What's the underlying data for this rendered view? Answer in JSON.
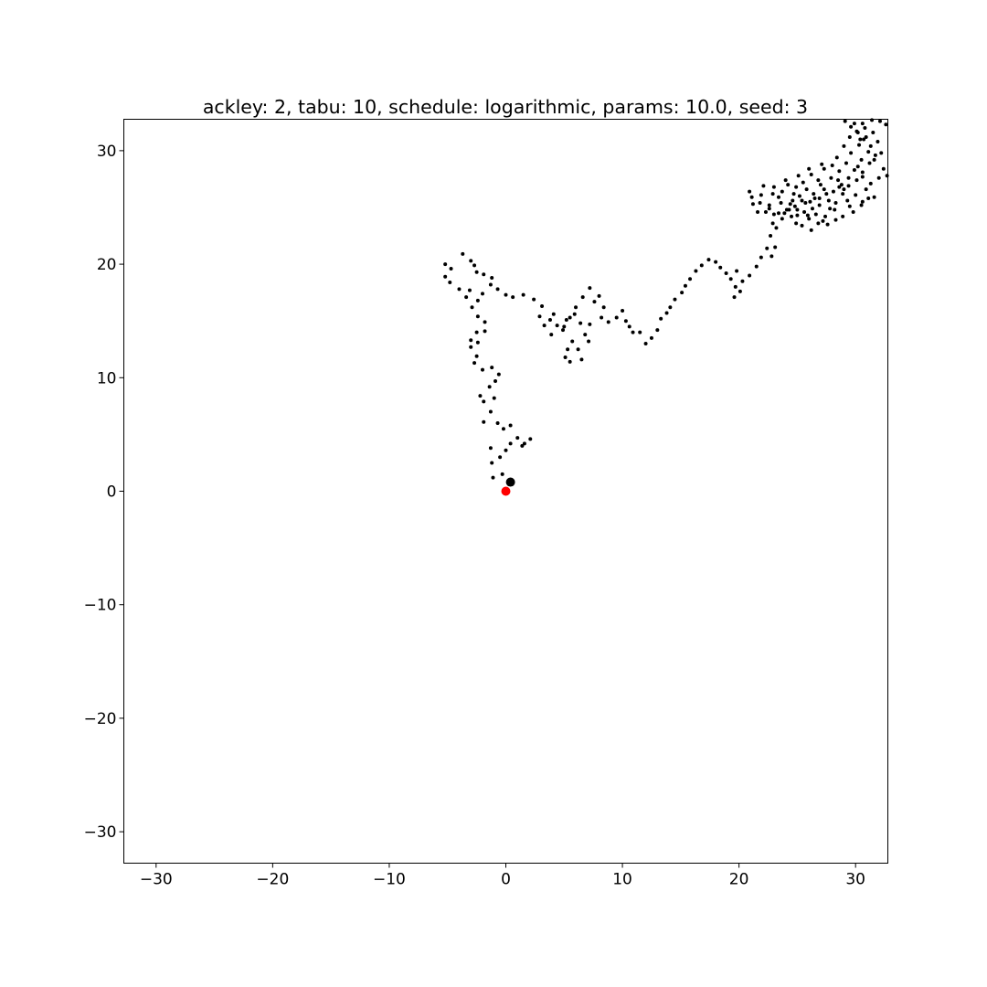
{
  "chart_data": {
    "type": "scatter",
    "title": "ackley: 2, tabu: 10, schedule: logarithmic, params: 10.0, seed: 3",
    "xlabel": "",
    "ylabel": "",
    "xlim": [
      -32.768,
      32.768
    ],
    "ylim": [
      -32.768,
      32.768
    ],
    "grid": false,
    "x_ticks": [
      -30,
      -20,
      -10,
      0,
      10,
      20,
      30
    ],
    "y_ticks": [
      -30,
      -20,
      -10,
      0,
      10,
      20,
      30
    ],
    "x_tick_labels": [
      "−30",
      "−20",
      "−10",
      "0",
      "10",
      "20",
      "30"
    ],
    "y_tick_labels": [
      "−30",
      "−20",
      "−10",
      "0",
      "10",
      "20",
      "30"
    ],
    "series": [
      {
        "role": "search-path",
        "color": "#000000",
        "marker": "small-dot",
        "points": [
          [
            -0.3,
            1.5
          ],
          [
            -1.1,
            1.2
          ],
          [
            -1.2,
            2.5
          ],
          [
            -1.3,
            3.8
          ],
          [
            -0.5,
            3.0
          ],
          [
            0.0,
            3.6
          ],
          [
            0.4,
            4.2
          ],
          [
            1.0,
            4.7
          ],
          [
            1.4,
            4.0
          ],
          [
            2.1,
            4.6
          ],
          [
            1.6,
            4.2
          ],
          [
            0.4,
            5.8
          ],
          [
            -0.2,
            5.5
          ],
          [
            -0.7,
            6.0
          ],
          [
            -1.9,
            6.1
          ],
          [
            -1.3,
            7.0
          ],
          [
            -1.9,
            7.9
          ],
          [
            -2.2,
            8.4
          ],
          [
            -1.0,
            8.2
          ],
          [
            -1.4,
            9.2
          ],
          [
            -0.9,
            9.7
          ],
          [
            -0.6,
            10.3
          ],
          [
            -1.2,
            10.9
          ],
          [
            -2.0,
            10.7
          ],
          [
            -2.7,
            11.3
          ],
          [
            -2.5,
            11.9
          ],
          [
            -3.0,
            12.7
          ],
          [
            -2.4,
            13.1
          ],
          [
            -3.0,
            13.3
          ],
          [
            -2.5,
            14.0
          ],
          [
            -1.8,
            14.1
          ],
          [
            -1.8,
            14.9
          ],
          [
            -2.4,
            15.4
          ],
          [
            -2.9,
            16.2
          ],
          [
            -2.4,
            16.8
          ],
          [
            -3.4,
            17.1
          ],
          [
            -2.0,
            17.4
          ],
          [
            -3.1,
            17.7
          ],
          [
            -4.0,
            17.8
          ],
          [
            -4.8,
            18.4
          ],
          [
            -5.2,
            18.9
          ],
          [
            -4.7,
            19.6
          ],
          [
            -5.2,
            20.0
          ],
          [
            -3.7,
            20.9
          ],
          [
            -3.0,
            20.3
          ],
          [
            -2.7,
            19.9
          ],
          [
            -2.5,
            19.3
          ],
          [
            -1.9,
            19.1
          ],
          [
            -1.2,
            18.8
          ],
          [
            -1.3,
            18.2
          ],
          [
            -0.7,
            17.8
          ],
          [
            0.0,
            17.3
          ],
          [
            0.6,
            17.1
          ],
          [
            1.5,
            17.3
          ],
          [
            2.4,
            16.9
          ],
          [
            3.1,
            16.3
          ],
          [
            2.9,
            15.4
          ],
          [
            3.3,
            14.6
          ],
          [
            3.8,
            15.1
          ],
          [
            4.1,
            15.6
          ],
          [
            4.4,
            14.6
          ],
          [
            3.9,
            13.8
          ],
          [
            4.9,
            14.2
          ],
          [
            5.2,
            15.1
          ],
          [
            5.9,
            15.6
          ],
          [
            6.4,
            14.8
          ],
          [
            7.2,
            14.7
          ],
          [
            6.8,
            13.8
          ],
          [
            7.1,
            13.2
          ],
          [
            6.2,
            12.5
          ],
          [
            6.5,
            11.6
          ],
          [
            5.5,
            11.4
          ],
          [
            5.1,
            11.8
          ],
          [
            5.3,
            12.5
          ],
          [
            5.7,
            13.2
          ],
          [
            5.0,
            14.5
          ],
          [
            5.5,
            15.3
          ],
          [
            6.0,
            16.2
          ],
          [
            6.6,
            17.1
          ],
          [
            7.2,
            17.9
          ],
          [
            8.0,
            17.2
          ],
          [
            7.6,
            16.7
          ],
          [
            8.4,
            16.2
          ],
          [
            8.2,
            15.3
          ],
          [
            8.8,
            14.9
          ],
          [
            9.5,
            15.3
          ],
          [
            10.0,
            15.9
          ],
          [
            10.3,
            15.0
          ],
          [
            10.6,
            14.5
          ],
          [
            10.9,
            14.0
          ],
          [
            11.5,
            14.0
          ],
          [
            12.0,
            13.0
          ],
          [
            12.5,
            13.5
          ],
          [
            13.0,
            14.2
          ],
          [
            13.3,
            15.2
          ],
          [
            13.8,
            15.7
          ],
          [
            14.1,
            16.2
          ],
          [
            14.5,
            16.9
          ],
          [
            15.1,
            17.5
          ],
          [
            15.4,
            18.1
          ],
          [
            15.8,
            18.7
          ],
          [
            16.3,
            19.4
          ],
          [
            16.8,
            19.9
          ],
          [
            17.4,
            20.4
          ],
          [
            18.0,
            20.2
          ],
          [
            18.4,
            19.7
          ],
          [
            18.9,
            19.2
          ],
          [
            19.3,
            18.7
          ],
          [
            19.7,
            18.0
          ],
          [
            19.6,
            17.1
          ],
          [
            20.1,
            17.6
          ],
          [
            20.3,
            18.5
          ],
          [
            19.8,
            19.4
          ],
          [
            20.9,
            19.0
          ],
          [
            21.5,
            19.8
          ],
          [
            21.9,
            20.6
          ],
          [
            22.4,
            21.4
          ],
          [
            22.8,
            20.7
          ],
          [
            23.1,
            21.5
          ],
          [
            22.7,
            22.5
          ],
          [
            22.9,
            23.6
          ],
          [
            23.4,
            24.5
          ],
          [
            22.6,
            24.9
          ],
          [
            21.8,
            25.4
          ],
          [
            21.1,
            25.9
          ],
          [
            20.9,
            26.4
          ],
          [
            22.1,
            26.9
          ],
          [
            22.9,
            26.2
          ],
          [
            23.6,
            25.4
          ],
          [
            24.3,
            24.8
          ],
          [
            25.0,
            24.3
          ],
          [
            25.4,
            23.4
          ],
          [
            26.2,
            23.0
          ],
          [
            26.8,
            23.6
          ],
          [
            27.4,
            24.2
          ],
          [
            27.8,
            24.9
          ],
          [
            28.3,
            25.4
          ],
          [
            28.9,
            26.2
          ],
          [
            29.4,
            26.9
          ],
          [
            30.1,
            27.4
          ],
          [
            30.6,
            28.1
          ],
          [
            31.2,
            28.9
          ],
          [
            31.7,
            29.6
          ],
          [
            31.3,
            30.4
          ],
          [
            30.7,
            31.0
          ],
          [
            30.2,
            31.6
          ],
          [
            29.6,
            32.1
          ],
          [
            29.1,
            32.6
          ],
          [
            29.8,
            32.8
          ],
          [
            30.6,
            32.4
          ],
          [
            31.4,
            32.7
          ],
          [
            32.1,
            32.6
          ],
          [
            32.6,
            32.3
          ]
        ]
      },
      {
        "role": "search-cluster",
        "color": "#000000",
        "marker": "small-dot",
        "points": [
          [
            22.3,
            24.6
          ],
          [
            23.0,
            24.4
          ],
          [
            23.7,
            24.0
          ],
          [
            24.1,
            24.8
          ],
          [
            24.6,
            25.6
          ],
          [
            25.2,
            26.0
          ],
          [
            25.7,
            25.4
          ],
          [
            26.3,
            24.9
          ],
          [
            26.9,
            25.8
          ],
          [
            27.3,
            26.6
          ],
          [
            26.8,
            27.4
          ],
          [
            26.2,
            27.9
          ],
          [
            25.5,
            27.2
          ],
          [
            24.9,
            26.8
          ],
          [
            24.2,
            27.0
          ],
          [
            23.7,
            26.4
          ],
          [
            24.4,
            25.3
          ],
          [
            25.0,
            24.8
          ],
          [
            25.9,
            24.3
          ],
          [
            26.5,
            25.8
          ],
          [
            27.7,
            25.6
          ],
          [
            28.2,
            24.8
          ],
          [
            28.6,
            26.8
          ],
          [
            27.9,
            27.6
          ],
          [
            27.3,
            28.4
          ],
          [
            28.6,
            28.2
          ],
          [
            29.2,
            28.9
          ],
          [
            29.6,
            29.8
          ],
          [
            30.3,
            30.5
          ],
          [
            30.9,
            31.2
          ],
          [
            31.5,
            31.6
          ],
          [
            31.9,
            30.8
          ],
          [
            31.1,
            29.9
          ],
          [
            30.5,
            29.2
          ],
          [
            29.9,
            28.3
          ],
          [
            30.6,
            27.7
          ],
          [
            31.3,
            27.1
          ],
          [
            32.0,
            27.6
          ],
          [
            32.4,
            28.4
          ],
          [
            32.7,
            27.8
          ],
          [
            29.4,
            27.6
          ],
          [
            28.8,
            27.0
          ],
          [
            29.3,
            25.6
          ],
          [
            30.0,
            26.1
          ],
          [
            30.5,
            25.2
          ],
          [
            31.1,
            25.8
          ],
          [
            29.8,
            24.6
          ],
          [
            28.9,
            24.2
          ],
          [
            27.6,
            23.5
          ],
          [
            26.6,
            24.4
          ],
          [
            25.4,
            25.6
          ],
          [
            24.7,
            26.2
          ],
          [
            25.8,
            26.6
          ],
          [
            26.4,
            26.2
          ],
          [
            27.0,
            27.0
          ],
          [
            23.4,
            25.9
          ],
          [
            22.6,
            25.2
          ],
          [
            21.6,
            24.6
          ],
          [
            21.2,
            25.3
          ],
          [
            21.9,
            26.1
          ],
          [
            23.0,
            26.8
          ],
          [
            24.0,
            27.4
          ],
          [
            25.1,
            27.8
          ],
          [
            26.0,
            28.4
          ],
          [
            27.1,
            28.8
          ],
          [
            28.0,
            28.7
          ],
          [
            28.4,
            29.4
          ],
          [
            29.0,
            30.4
          ],
          [
            29.5,
            31.2
          ],
          [
            30.1,
            31.7
          ],
          [
            30.8,
            32.0
          ],
          [
            29.9,
            32.4
          ],
          [
            30.4,
            31.0
          ],
          [
            31.6,
            29.2
          ],
          [
            32.2,
            29.8
          ],
          [
            30.2,
            28.6
          ],
          [
            27.5,
            26.2
          ],
          [
            26.1,
            25.5
          ],
          [
            24.8,
            25.1
          ],
          [
            23.9,
            24.5
          ],
          [
            25.6,
            24.6
          ],
          [
            26.9,
            25.2
          ],
          [
            28.1,
            26.4
          ],
          [
            28.5,
            27.4
          ],
          [
            29.0,
            26.6
          ],
          [
            30.9,
            26.6
          ],
          [
            31.6,
            25.9
          ],
          [
            30.6,
            25.5
          ],
          [
            29.5,
            25.1
          ],
          [
            28.3,
            23.9
          ],
          [
            27.2,
            23.8
          ],
          [
            26.0,
            24.0
          ],
          [
            24.9,
            23.6
          ],
          [
            24.5,
            24.2
          ],
          [
            23.2,
            23.2
          ]
        ]
      },
      {
        "role": "final-point",
        "color": "#000000",
        "marker": "large-dot",
        "points": [
          [
            0.4,
            0.8
          ]
        ]
      },
      {
        "role": "global-optimum",
        "color": "#ff0000",
        "marker": "large-dot",
        "points": [
          [
            0.0,
            0.0
          ]
        ]
      }
    ]
  }
}
